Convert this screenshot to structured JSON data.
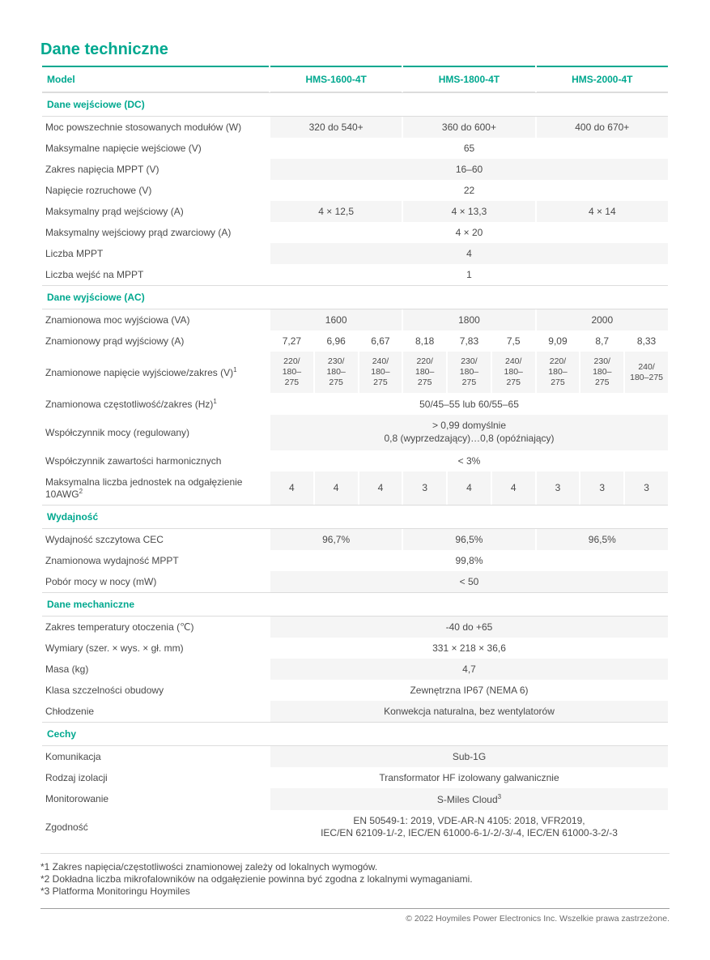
{
  "title": "Dane techniczne",
  "colors": {
    "accent": "#00a88f",
    "text": "#4a4a4a",
    "text_light": "#6b6b6b",
    "row_bg": "#f5f5f5",
    "border": "#dcdcdc",
    "border_dark": "#9e9e9e",
    "background": "#ffffff"
  },
  "header": {
    "label": "Model",
    "cols": [
      "HMS-1600-4T",
      "HMS-1800-4T",
      "HMS-2000-4T"
    ]
  },
  "sections": {
    "dc": {
      "title": "Dane wejściowe (DC)",
      "rows": {
        "pv_power": {
          "label": "Moc powszechnie stosowanych modułów (W)",
          "vals": [
            "320 do 540+",
            "360 do 600+",
            "400 do 670+"
          ],
          "bg": true
        },
        "vmax": {
          "label": "Maksymalne napięcie wejściowe (V)",
          "vals": [
            "65"
          ],
          "bg": false
        },
        "mppt_range": {
          "label": "Zakres napięcia MPPT (V)",
          "vals": [
            "16–60"
          ],
          "bg": true
        },
        "vstart": {
          "label": "Napięcie rozruchowe (V)",
          "vals": [
            "22"
          ],
          "bg": false
        },
        "iin": {
          "label": "Maksymalny prąd wejściowy (A)",
          "vals": [
            "4 × 12,5",
            "4 × 13,3",
            "4 × 14"
          ],
          "bg": true
        },
        "isc": {
          "label": "Maksymalny wejściowy prąd zwarciowy (A)",
          "vals": [
            "4 × 20"
          ],
          "bg": false
        },
        "n_mppt": {
          "label": "Liczba MPPT",
          "vals": [
            "4"
          ],
          "bg": true
        },
        "n_in": {
          "label": "Liczba wejść na MPPT",
          "vals": [
            "1"
          ],
          "bg": false
        }
      }
    },
    "ac": {
      "title": "Dane wyjściowe (AC)",
      "rows": {
        "pout": {
          "label": "Znamionowa moc wyjściowa (VA)",
          "vals": [
            "1600",
            "1800",
            "2000"
          ],
          "bg": true
        },
        "iout": {
          "label": "Znamionowy prąd wyjściowy (A)",
          "vals": [
            "7,27",
            "6,96",
            "6,67",
            "8,18",
            "7,83",
            "7,5",
            "9,09",
            "8,7",
            "8,33"
          ],
          "bg": false,
          "nine": true
        },
        "vout": {
          "label": "Znamionowe napięcie wyjściowe/zakres (V)",
          "sup": "1",
          "vals": [
            "220/\n180–275",
            "230/\n180–275",
            "240/\n180–275",
            "220/\n180–275",
            "230/\n180–275",
            "240/\n180–275",
            "220/\n180–275",
            "230/\n180–275",
            "240/\n180–275"
          ],
          "bg": true,
          "nine": true,
          "small": true
        },
        "freq": {
          "label": "Znamionowa częstotliwość/zakres (Hz)",
          "sup": "1",
          "vals": [
            "50/45–55 lub 60/55–65"
          ],
          "bg": false
        },
        "pf": {
          "label": "Współczynnik mocy (regulowany)",
          "vals": [
            "> 0,99 domyślnie\n0,8 (wyprzedzający)…0,8 (opóźniający)"
          ],
          "bg": true,
          "twoline": true
        },
        "thd": {
          "label": "Współczynnik zawartości harmonicznych",
          "vals": [
            "< 3%"
          ],
          "bg": false
        },
        "units": {
          "label": "Maksymalna liczba jednostek na odgałęzienie 10AWG",
          "sup": "2",
          "vals": [
            "4",
            "4",
            "4",
            "3",
            "4",
            "4",
            "3",
            "3",
            "3"
          ],
          "bg": true,
          "nine": true
        }
      }
    },
    "eff": {
      "title": "Wydajność",
      "rows": {
        "cec": {
          "label": "Wydajność szczytowa CEC",
          "vals": [
            "96,7%",
            "96,5%",
            "96,5%"
          ],
          "bg": true
        },
        "mppt": {
          "label": "Znamionowa wydajność MPPT",
          "vals": [
            "99,8%"
          ],
          "bg": false
        },
        "night": {
          "label": "Pobór mocy w nocy (mW)",
          "vals": [
            "< 50"
          ],
          "bg": true
        }
      }
    },
    "mech": {
      "title": "Dane mechaniczne",
      "rows": {
        "temp": {
          "label": "Zakres temperatury otoczenia (℃)",
          "vals": [
            "-40 do +65"
          ],
          "bg": true
        },
        "dim": {
          "label": "Wymiary (szer. × wys. × gł. mm)",
          "vals": [
            "331 × 218 × 36,6"
          ],
          "bg": false
        },
        "mass": {
          "label": "Masa (kg)",
          "vals": [
            "4,7"
          ],
          "bg": true
        },
        "ip": {
          "label": "Klasa szczelności obudowy",
          "vals": [
            "Zewnętrzna IP67 (NEMA 6)"
          ],
          "bg": false
        },
        "cool": {
          "label": "Chłodzenie",
          "vals": [
            "Konwekcja naturalna, bez wentylatorów"
          ],
          "bg": true
        }
      }
    },
    "feat": {
      "title": "Cechy",
      "rows": {
        "comm": {
          "label": "Komunikacja",
          "vals": [
            "Sub-1G"
          ],
          "bg": true
        },
        "iso": {
          "label": "Rodzaj izolacji",
          "vals": [
            "Transformator HF izolowany galwanicznie"
          ],
          "bg": false
        },
        "mon": {
          "label": "Monitorowanie",
          "vals": [
            "S-Miles Cloud"
          ],
          "sup_val": "3",
          "bg": true
        },
        "std": {
          "label": "Zgodność",
          "vals": [
            "EN 50549-1: 2019, VDE-AR-N 4105: 2018, VFR2019,\nIEC/EN 62109-1/-2, IEC/EN 61000-6-1/-2/-3/-4, IEC/EN 61000-3-2/-3"
          ],
          "bg": false,
          "twoline": true
        }
      }
    }
  },
  "footnotes": [
    "*1 Zakres napięcia/częstotliwości znamionowej zależy od lokalnych wymogów.",
    "*2 Dokładna liczba mikrofalowników na odgałęzienie powinna być zgodna z lokalnymi wymaganiami.",
    "*3 Platforma Monitoringu Hoymiles"
  ],
  "copyright": "© 2022 Hoymiles Power Electronics Inc. Wszelkie prawa zastrzeżone."
}
